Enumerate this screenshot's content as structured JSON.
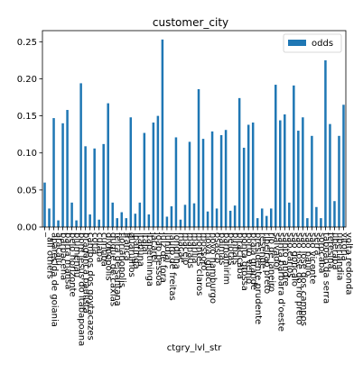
{
  "chart_data": {
    "type": "bar",
    "title": "customer_city",
    "xlabel": "ctgry_lvl_str",
    "ylabel": "",
    "ylim": [
      0,
      0.265
    ],
    "yticks": [
      0.0,
      0.05,
      0.1,
      0.15,
      0.2,
      0.25
    ],
    "ytick_labels": [
      "0.00",
      "0.05",
      "0.10",
      "0.15",
      "0.20",
      "0.25"
    ],
    "grid": false,
    "legend_position": "top-right",
    "bar_color": "#1f77b4",
    "series": [
      {
        "name": "odds",
        "values": [
          0.06,
          0.025,
          0.147,
          0.009,
          0.14,
          0.158,
          0.033,
          0.009,
          0.194,
          0.109,
          0.017,
          0.106,
          0.01,
          0.112,
          0.167,
          0.033,
          0.012,
          0.02,
          0.012,
          0.148,
          0.018,
          0.033,
          0.127,
          0.017,
          0.141,
          0.15,
          0.253,
          0.014,
          0.028,
          0.121,
          0.01,
          0.03,
          0.115,
          0.032,
          0.186,
          0.119,
          0.021,
          0.129,
          0.025,
          0.124,
          0.131,
          0.022,
          0.029,
          0.174,
          0.107,
          0.138,
          0.141,
          0.012,
          0.025,
          0.015,
          0.025,
          0.192,
          0.144,
          0.152,
          0.033,
          0.191,
          0.13,
          0.148,
          0.012,
          0.123,
          0.027,
          0.012,
          0.225,
          0.139,
          0.035,
          0.123,
          0.165
        ]
      }
    ],
    "tick_labels": [
      "_all others",
      "aparecida de goiania",
      "aracaju",
      "barbacena",
      "barra mansa",
      "belo horizonte",
      "blumenau",
      "bom jesus do itabapoana",
      "braganca paulista",
      "campos dos goytacazes",
      "cotia",
      "cuiaba",
      "curitiba",
      "divinopolis",
      "duque de caxias",
      "feira de santana",
      "florianopolis",
      "franca",
      "guarulhos",
      "ipatinga",
      "itabuna",
      "itajai",
      "itapetininga",
      "jacarei",
      "joao pessoa",
      "juiz de fora",
      "jundiai",
      "lauro de freitas",
      "londrina",
      "macae",
      "maceio",
      "manaus",
      "marilia",
      "montes claros",
      "mossoro",
      "nova iguacu",
      "novo hamburgo",
      "osasco",
      "palmas",
      "parnamirim",
      "pelotas",
      "pinhais",
      "piracicaba",
      "ponta grossa",
      "porto velho",
      "praia grande",
      "presidente prudente",
      "resende",
      "ribeirao preto",
      "rio de janeiro",
      "salvador",
      "santa barbara d'oeste",
      "santo andre",
      "sao carlos",
      "sao goncalo",
      "sao jose do rio preto",
      "sao jose dos campos",
      "sao paulo",
      "sao vicente",
      "serra",
      "sorocaba",
      "taboao da serra",
      "teresina",
      "uberaba",
      "uberlandia",
      "vitoria",
      "volta redonda"
    ]
  }
}
